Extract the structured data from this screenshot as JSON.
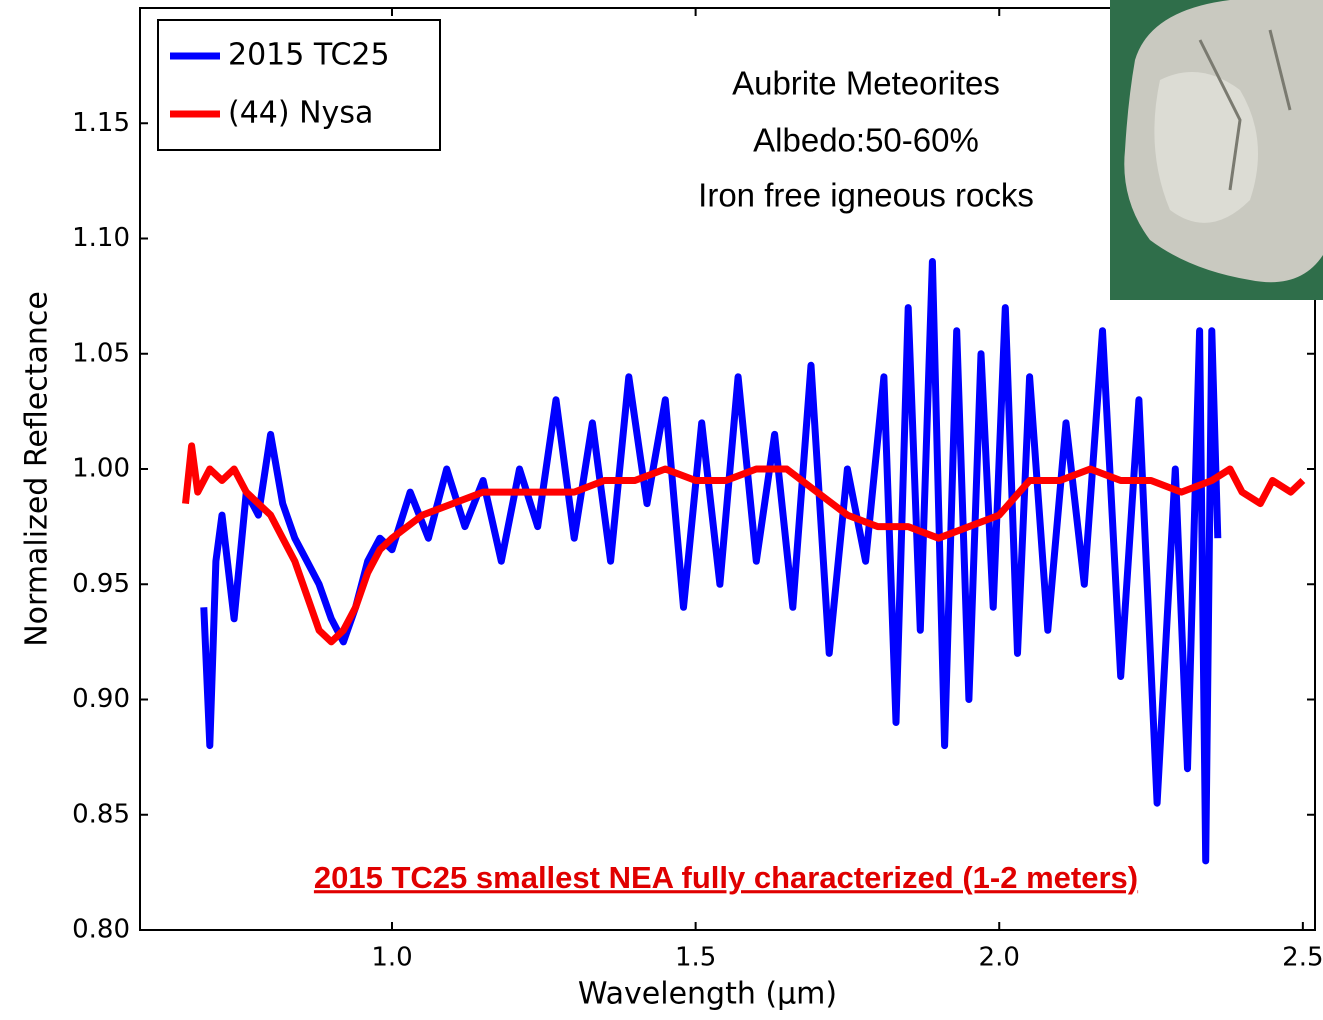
{
  "chart_data": {
    "type": "line",
    "xlabel": "Wavelength (μm)",
    "ylabel": "Normalized Reflectance",
    "xlim": [
      0.585,
      2.52
    ],
    "ylim": [
      0.8,
      1.2
    ],
    "xticks": [
      {
        "value": 1.0,
        "label": "1.0"
      },
      1.5,
      {
        "value": 2.0,
        "label": "2.0"
      },
      2.5
    ],
    "yticks": [
      {
        "value": 0.8,
        "label": "0.80"
      },
      0.85,
      {
        "value": 0.9,
        "label": "0.90"
      },
      0.95,
      {
        "value": 1.0,
        "label": "1.00"
      },
      1.05,
      {
        "value": 1.1,
        "label": "1.10"
      },
      1.15
    ],
    "grid": false,
    "legend": "upper left",
    "annotations": [
      "Aubrite Meteorites",
      "Albedo:50-60%",
      "Iron free igneous rocks",
      "2015 TC25 smallest NEA fully characterized (1-2 meters)"
    ],
    "series": [
      {
        "name": "2015 TC25",
        "color": "#0000ff",
        "x": [
          0.69,
          0.7,
          0.71,
          0.72,
          0.74,
          0.76,
          0.78,
          0.8,
          0.82,
          0.84,
          0.86,
          0.88,
          0.9,
          0.92,
          0.94,
          0.96,
          0.98,
          1.0,
          1.03,
          1.06,
          1.09,
          1.12,
          1.15,
          1.18,
          1.21,
          1.24,
          1.27,
          1.3,
          1.33,
          1.36,
          1.39,
          1.42,
          1.45,
          1.48,
          1.51,
          1.54,
          1.57,
          1.6,
          1.63,
          1.66,
          1.69,
          1.72,
          1.75,
          1.78,
          1.81,
          1.83,
          1.85,
          1.87,
          1.89,
          1.91,
          1.93,
          1.95,
          1.97,
          1.99,
          2.01,
          2.03,
          2.05,
          2.08,
          2.11,
          2.14,
          2.17,
          2.2,
          2.23,
          2.26,
          2.29,
          2.31,
          2.33,
          2.34,
          2.35,
          2.36
        ],
        "values": [
          0.94,
          0.88,
          0.96,
          0.98,
          0.935,
          0.99,
          0.98,
          1.015,
          0.985,
          0.97,
          0.96,
          0.95,
          0.935,
          0.925,
          0.94,
          0.96,
          0.97,
          0.965,
          0.99,
          0.97,
          1.0,
          0.975,
          0.995,
          0.96,
          1.0,
          0.975,
          1.03,
          0.97,
          1.02,
          0.96,
          1.04,
          0.985,
          1.03,
          0.94,
          1.02,
          0.95,
          1.04,
          0.96,
          1.015,
          0.94,
          1.045,
          0.92,
          1.0,
          0.96,
          1.04,
          0.89,
          1.07,
          0.93,
          1.09,
          0.88,
          1.06,
          0.9,
          1.05,
          0.94,
          1.07,
          0.92,
          1.04,
          0.93,
          1.02,
          0.95,
          1.06,
          0.91,
          1.03,
          0.855,
          1.0,
          0.87,
          1.06,
          0.83,
          1.06,
          0.97
        ]
      },
      {
        "name": "(44) Nysa",
        "color": "#ff0000",
        "x": [
          0.66,
          0.67,
          0.68,
          0.7,
          0.72,
          0.74,
          0.76,
          0.78,
          0.8,
          0.82,
          0.84,
          0.86,
          0.88,
          0.9,
          0.92,
          0.94,
          0.96,
          0.98,
          1.0,
          1.05,
          1.1,
          1.15,
          1.2,
          1.25,
          1.3,
          1.35,
          1.4,
          1.45,
          1.5,
          1.55,
          1.6,
          1.65,
          1.7,
          1.75,
          1.8,
          1.85,
          1.9,
          1.95,
          2.0,
          2.05,
          2.1,
          2.15,
          2.2,
          2.25,
          2.3,
          2.35,
          2.38,
          2.4,
          2.43,
          2.45,
          2.48,
          2.5
        ],
        "values": [
          0.985,
          1.01,
          0.99,
          1.0,
          0.995,
          1.0,
          0.99,
          0.985,
          0.98,
          0.97,
          0.96,
          0.945,
          0.93,
          0.925,
          0.93,
          0.94,
          0.955,
          0.965,
          0.97,
          0.98,
          0.985,
          0.99,
          0.99,
          0.99,
          0.99,
          0.995,
          0.995,
          1.0,
          0.995,
          0.995,
          1.0,
          1.0,
          0.99,
          0.98,
          0.975,
          0.975,
          0.97,
          0.975,
          0.98,
          0.995,
          0.995,
          1.0,
          0.995,
          0.995,
          0.99,
          0.995,
          1.0,
          0.99,
          0.985,
          0.995,
          0.99,
          0.995
        ]
      }
    ]
  }
}
